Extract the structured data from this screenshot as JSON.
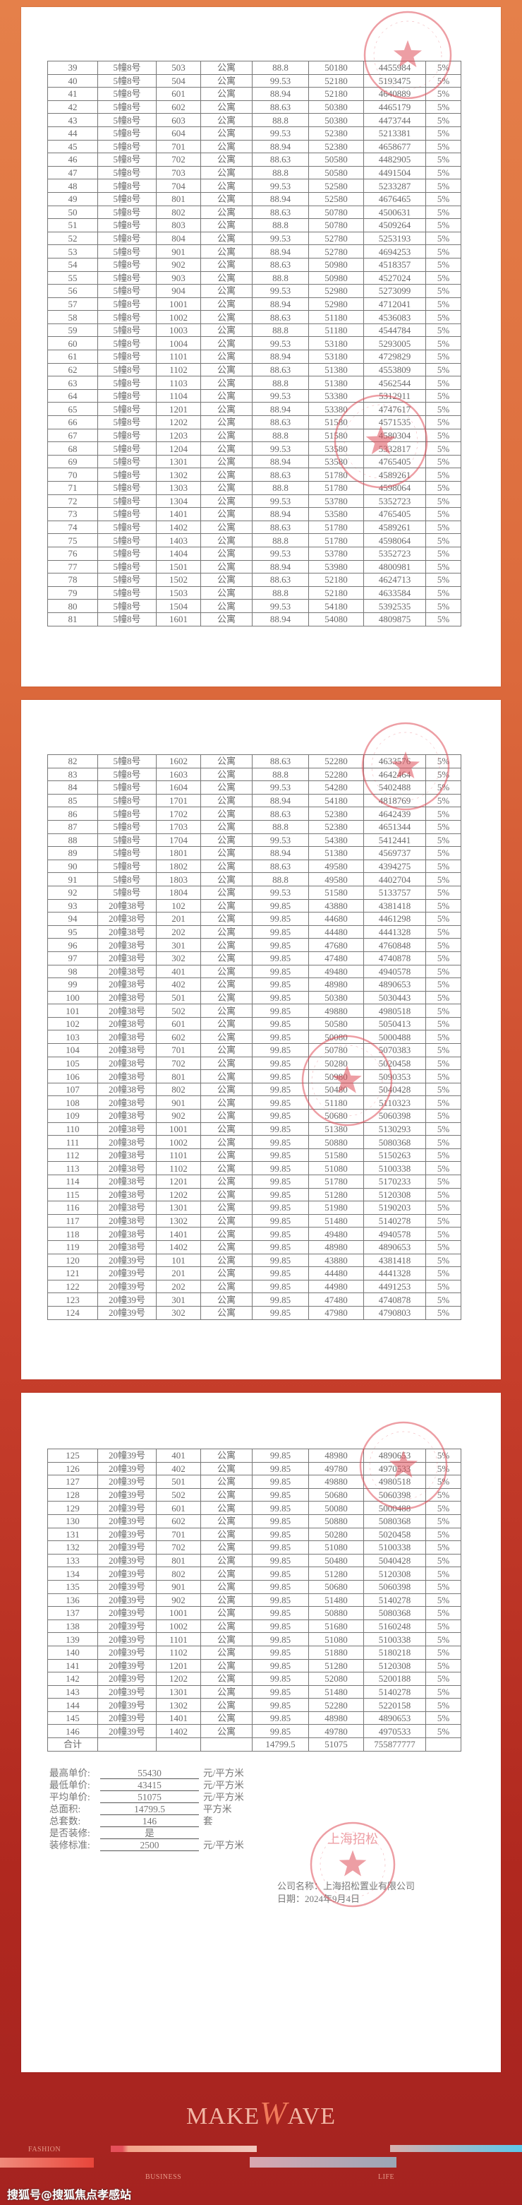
{
  "pages": [
    {
      "rows": [
        [
          "39",
          "5幢8号",
          "503",
          "公寓",
          "88.8",
          "50180",
          "4455984",
          "5%"
        ],
        [
          "40",
          "5幢8号",
          "504",
          "公寓",
          "99.53",
          "52180",
          "5193475",
          "5%"
        ],
        [
          "41",
          "5幢8号",
          "601",
          "公寓",
          "88.94",
          "52180",
          "4640889",
          "5%"
        ],
        [
          "42",
          "5幢8号",
          "602",
          "公寓",
          "88.63",
          "50380",
          "4465179",
          "5%"
        ],
        [
          "43",
          "5幢8号",
          "603",
          "公寓",
          "88.8",
          "50380",
          "4473744",
          "5%"
        ],
        [
          "44",
          "5幢8号",
          "604",
          "公寓",
          "99.53",
          "52380",
          "5213381",
          "5%"
        ],
        [
          "45",
          "5幢8号",
          "701",
          "公寓",
          "88.94",
          "52380",
          "4658677",
          "5%"
        ],
        [
          "46",
          "5幢8号",
          "702",
          "公寓",
          "88.63",
          "50580",
          "4482905",
          "5%"
        ],
        [
          "47",
          "5幢8号",
          "703",
          "公寓",
          "88.8",
          "50580",
          "4491504",
          "5%"
        ],
        [
          "48",
          "5幢8号",
          "704",
          "公寓",
          "99.53",
          "52580",
          "5233287",
          "5%"
        ],
        [
          "49",
          "5幢8号",
          "801",
          "公寓",
          "88.94",
          "52580",
          "4676465",
          "5%"
        ],
        [
          "50",
          "5幢8号",
          "802",
          "公寓",
          "88.63",
          "50780",
          "4500631",
          "5%"
        ],
        [
          "51",
          "5幢8号",
          "803",
          "公寓",
          "88.8",
          "50780",
          "4509264",
          "5%"
        ],
        [
          "52",
          "5幢8号",
          "804",
          "公寓",
          "99.53",
          "52780",
          "5253193",
          "5%"
        ],
        [
          "53",
          "5幢8号",
          "901",
          "公寓",
          "88.94",
          "52780",
          "4694253",
          "5%"
        ],
        [
          "54",
          "5幢8号",
          "902",
          "公寓",
          "88.63",
          "50980",
          "4518357",
          "5%"
        ],
        [
          "55",
          "5幢8号",
          "903",
          "公寓",
          "88.8",
          "50980",
          "4527024",
          "5%"
        ],
        [
          "56",
          "5幢8号",
          "904",
          "公寓",
          "99.53",
          "52980",
          "5273099",
          "5%"
        ],
        [
          "57",
          "5幢8号",
          "1001",
          "公寓",
          "88.94",
          "52980",
          "4712041",
          "5%"
        ],
        [
          "58",
          "5幢8号",
          "1002",
          "公寓",
          "88.63",
          "51180",
          "4536083",
          "5%"
        ],
        [
          "59",
          "5幢8号",
          "1003",
          "公寓",
          "88.8",
          "51180",
          "4544784",
          "5%"
        ],
        [
          "60",
          "5幢8号",
          "1004",
          "公寓",
          "99.53",
          "53180",
          "5293005",
          "5%"
        ],
        [
          "61",
          "5幢8号",
          "1101",
          "公寓",
          "88.94",
          "53180",
          "4729829",
          "5%"
        ],
        [
          "62",
          "5幢8号",
          "1102",
          "公寓",
          "88.63",
          "51380",
          "4553809",
          "5%"
        ],
        [
          "63",
          "5幢8号",
          "1103",
          "公寓",
          "88.8",
          "51380",
          "4562544",
          "5%"
        ],
        [
          "64",
          "5幢8号",
          "1104",
          "公寓",
          "99.53",
          "53380",
          "5312911",
          "5%"
        ],
        [
          "65",
          "5幢8号",
          "1201",
          "公寓",
          "88.94",
          "53380",
          "4747617",
          "5%"
        ],
        [
          "66",
          "5幢8号",
          "1202",
          "公寓",
          "88.63",
          "51580",
          "4571535",
          "5%"
        ],
        [
          "67",
          "5幢8号",
          "1203",
          "公寓",
          "88.8",
          "51580",
          "4580304",
          "5%"
        ],
        [
          "68",
          "5幢8号",
          "1204",
          "公寓",
          "99.53",
          "53580",
          "5332817",
          "5%"
        ],
        [
          "69",
          "5幢8号",
          "1301",
          "公寓",
          "88.94",
          "53580",
          "4765405",
          "5%"
        ],
        [
          "70",
          "5幢8号",
          "1302",
          "公寓",
          "88.63",
          "51780",
          "4589261",
          "5%"
        ],
        [
          "71",
          "5幢8号",
          "1303",
          "公寓",
          "88.8",
          "51780",
          "4598064",
          "5%"
        ],
        [
          "72",
          "5幢8号",
          "1304",
          "公寓",
          "99.53",
          "53780",
          "5352723",
          "5%"
        ],
        [
          "73",
          "5幢8号",
          "1401",
          "公寓",
          "88.94",
          "53580",
          "4765405",
          "5%"
        ],
        [
          "74",
          "5幢8号",
          "1402",
          "公寓",
          "88.63",
          "51780",
          "4589261",
          "5%"
        ],
        [
          "75",
          "5幢8号",
          "1403",
          "公寓",
          "88.8",
          "51780",
          "4598064",
          "5%"
        ],
        [
          "76",
          "5幢8号",
          "1404",
          "公寓",
          "99.53",
          "53780",
          "5352723",
          "5%"
        ],
        [
          "77",
          "5幢8号",
          "1501",
          "公寓",
          "88.94",
          "53980",
          "4800981",
          "5%"
        ],
        [
          "78",
          "5幢8号",
          "1502",
          "公寓",
          "88.63",
          "52180",
          "4624713",
          "5%"
        ],
        [
          "79",
          "5幢8号",
          "1503",
          "公寓",
          "88.8",
          "52180",
          "4633584",
          "5%"
        ],
        [
          "80",
          "5幢8号",
          "1504",
          "公寓",
          "99.53",
          "54180",
          "5392535",
          "5%"
        ],
        [
          "81",
          "5幢8号",
          "1601",
          "公寓",
          "88.94",
          "54080",
          "4809875",
          "5%"
        ]
      ]
    },
    {
      "rows": [
        [
          "82",
          "5幢8号",
          "1602",
          "公寓",
          "88.63",
          "52280",
          "4633576",
          "5%"
        ],
        [
          "83",
          "5幢8号",
          "1603",
          "公寓",
          "88.8",
          "52280",
          "4642464",
          "5%"
        ],
        [
          "84",
          "5幢8号",
          "1604",
          "公寓",
          "99.53",
          "54280",
          "5402488",
          "5%"
        ],
        [
          "85",
          "5幢8号",
          "1701",
          "公寓",
          "88.94",
          "54180",
          "4818769",
          "5%"
        ],
        [
          "86",
          "5幢8号",
          "1702",
          "公寓",
          "88.63",
          "52380",
          "4642439",
          "5%"
        ],
        [
          "87",
          "5幢8号",
          "1703",
          "公寓",
          "88.8",
          "52380",
          "4651344",
          "5%"
        ],
        [
          "88",
          "5幢8号",
          "1704",
          "公寓",
          "99.53",
          "54380",
          "5412441",
          "5%"
        ],
        [
          "89",
          "5幢8号",
          "1801",
          "公寓",
          "88.94",
          "51380",
          "4569737",
          "5%"
        ],
        [
          "90",
          "5幢8号",
          "1802",
          "公寓",
          "88.63",
          "49580",
          "4394275",
          "5%"
        ],
        [
          "91",
          "5幢8号",
          "1803",
          "公寓",
          "88.8",
          "49580",
          "4402704",
          "5%"
        ],
        [
          "92",
          "5幢8号",
          "1804",
          "公寓",
          "99.53",
          "51580",
          "5133757",
          "5%"
        ],
        [
          "93",
          "20幢38号",
          "102",
          "公寓",
          "99.85",
          "43880",
          "4381418",
          "5%"
        ],
        [
          "94",
          "20幢38号",
          "201",
          "公寓",
          "99.85",
          "44680",
          "4461298",
          "5%"
        ],
        [
          "95",
          "20幢38号",
          "202",
          "公寓",
          "99.85",
          "44480",
          "4441328",
          "5%"
        ],
        [
          "96",
          "20幢38号",
          "301",
          "公寓",
          "99.85",
          "47680",
          "4760848",
          "5%"
        ],
        [
          "97",
          "20幢38号",
          "302",
          "公寓",
          "99.85",
          "47480",
          "4740878",
          "5%"
        ],
        [
          "98",
          "20幢38号",
          "401",
          "公寓",
          "99.85",
          "49480",
          "4940578",
          "5%"
        ],
        [
          "99",
          "20幢38号",
          "402",
          "公寓",
          "99.85",
          "48980",
          "4890653",
          "5%"
        ],
        [
          "100",
          "20幢38号",
          "501",
          "公寓",
          "99.85",
          "50380",
          "5030443",
          "5%"
        ],
        [
          "101",
          "20幢38号",
          "502",
          "公寓",
          "99.85",
          "49880",
          "4980518",
          "5%"
        ],
        [
          "102",
          "20幢38号",
          "601",
          "公寓",
          "99.85",
          "50580",
          "5050413",
          "5%"
        ],
        [
          "103",
          "20幢38号",
          "602",
          "公寓",
          "99.85",
          "50080",
          "5000488",
          "5%"
        ],
        [
          "104",
          "20幢38号",
          "701",
          "公寓",
          "99.85",
          "50780",
          "5070383",
          "5%"
        ],
        [
          "105",
          "20幢38号",
          "702",
          "公寓",
          "99.85",
          "50280",
          "5020458",
          "5%"
        ],
        [
          "106",
          "20幢38号",
          "801",
          "公寓",
          "99.85",
          "50980",
          "5090353",
          "5%"
        ],
        [
          "107",
          "20幢38号",
          "802",
          "公寓",
          "99.85",
          "50480",
          "5040428",
          "5%"
        ],
        [
          "108",
          "20幢38号",
          "901",
          "公寓",
          "99.85",
          "51180",
          "5110323",
          "5%"
        ],
        [
          "109",
          "20幢38号",
          "902",
          "公寓",
          "99.85",
          "50680",
          "5060398",
          "5%"
        ],
        [
          "110",
          "20幢38号",
          "1001",
          "公寓",
          "99.85",
          "51380",
          "5130293",
          "5%"
        ],
        [
          "111",
          "20幢38号",
          "1002",
          "公寓",
          "99.85",
          "50880",
          "5080368",
          "5%"
        ],
        [
          "112",
          "20幢38号",
          "1101",
          "公寓",
          "99.85",
          "51580",
          "5150263",
          "5%"
        ],
        [
          "113",
          "20幢38号",
          "1102",
          "公寓",
          "99.85",
          "51080",
          "5100338",
          "5%"
        ],
        [
          "114",
          "20幢38号",
          "1201",
          "公寓",
          "99.85",
          "51780",
          "5170233",
          "5%"
        ],
        [
          "115",
          "20幢38号",
          "1202",
          "公寓",
          "99.85",
          "51280",
          "5120308",
          "5%"
        ],
        [
          "116",
          "20幢38号",
          "1301",
          "公寓",
          "99.85",
          "51980",
          "5190203",
          "5%"
        ],
        [
          "117",
          "20幢38号",
          "1302",
          "公寓",
          "99.85",
          "51480",
          "5140278",
          "5%"
        ],
        [
          "118",
          "20幢38号",
          "1401",
          "公寓",
          "99.85",
          "49480",
          "4940578",
          "5%"
        ],
        [
          "119",
          "20幢38号",
          "1402",
          "公寓",
          "99.85",
          "48980",
          "4890653",
          "5%"
        ],
        [
          "120",
          "20幢39号",
          "101",
          "公寓",
          "99.85",
          "43880",
          "4381418",
          "5%"
        ],
        [
          "121",
          "20幢39号",
          "201",
          "公寓",
          "99.85",
          "44480",
          "4441328",
          "5%"
        ],
        [
          "122",
          "20幢39号",
          "202",
          "公寓",
          "99.85",
          "44980",
          "4491253",
          "5%"
        ],
        [
          "123",
          "20幢39号",
          "301",
          "公寓",
          "99.85",
          "47480",
          "4740878",
          "5%"
        ],
        [
          "124",
          "20幢39号",
          "302",
          "公寓",
          "99.85",
          "47980",
          "4790803",
          "5%"
        ]
      ]
    },
    {
      "rows": [
        [
          "125",
          "20幢39号",
          "401",
          "公寓",
          "99.85",
          "48980",
          "4890653",
          "5%"
        ],
        [
          "126",
          "20幢39号",
          "402",
          "公寓",
          "99.85",
          "49780",
          "4970533",
          "5%"
        ],
        [
          "127",
          "20幢39号",
          "501",
          "公寓",
          "99.85",
          "49880",
          "4980518",
          "5%"
        ],
        [
          "128",
          "20幢39号",
          "502",
          "公寓",
          "99.85",
          "50680",
          "5060398",
          "5%"
        ],
        [
          "129",
          "20幢39号",
          "601",
          "公寓",
          "99.85",
          "50080",
          "5000488",
          "5%"
        ],
        [
          "130",
          "20幢39号",
          "602",
          "公寓",
          "99.85",
          "50880",
          "5080368",
          "5%"
        ],
        [
          "131",
          "20幢39号",
          "701",
          "公寓",
          "99.85",
          "50280",
          "5020458",
          "5%"
        ],
        [
          "132",
          "20幢39号",
          "702",
          "公寓",
          "99.85",
          "51080",
          "5100338",
          "5%"
        ],
        [
          "133",
          "20幢39号",
          "801",
          "公寓",
          "99.85",
          "50480",
          "5040428",
          "5%"
        ],
        [
          "134",
          "20幢39号",
          "802",
          "公寓",
          "99.85",
          "51280",
          "5120308",
          "5%"
        ],
        [
          "135",
          "20幢39号",
          "901",
          "公寓",
          "99.85",
          "50680",
          "5060398",
          "5%"
        ],
        [
          "136",
          "20幢39号",
          "902",
          "公寓",
          "99.85",
          "51480",
          "5140278",
          "5%"
        ],
        [
          "137",
          "20幢39号",
          "1001",
          "公寓",
          "99.85",
          "50880",
          "5080368",
          "5%"
        ],
        [
          "138",
          "20幢39号",
          "1002",
          "公寓",
          "99.85",
          "51680",
          "5160248",
          "5%"
        ],
        [
          "139",
          "20幢39号",
          "1101",
          "公寓",
          "99.85",
          "51080",
          "5100338",
          "5%"
        ],
        [
          "140",
          "20幢39号",
          "1102",
          "公寓",
          "99.85",
          "51880",
          "5180218",
          "5%"
        ],
        [
          "141",
          "20幢39号",
          "1201",
          "公寓",
          "99.85",
          "51280",
          "5120308",
          "5%"
        ],
        [
          "142",
          "20幢39号",
          "1202",
          "公寓",
          "99.85",
          "52080",
          "5200188",
          "5%"
        ],
        [
          "143",
          "20幢39号",
          "1301",
          "公寓",
          "99.85",
          "51480",
          "5140278",
          "5%"
        ],
        [
          "144",
          "20幢39号",
          "1302",
          "公寓",
          "99.85",
          "52280",
          "5220158",
          "5%"
        ],
        [
          "145",
          "20幢39号",
          "1401",
          "公寓",
          "99.85",
          "48980",
          "4890653",
          "5%"
        ],
        [
          "146",
          "20幢39号",
          "1402",
          "公寓",
          "99.85",
          "49780",
          "4970533",
          "5%"
        ],
        [
          "合计",
          "",
          "",
          "",
          "14799.5",
          "51075",
          "755877777",
          ""
        ]
      ]
    }
  ],
  "summary": [
    {
      "label": "最高单价:",
      "value": "55430",
      "unit": "元/平方米"
    },
    {
      "label": "最低单价:",
      "value": "43415",
      "unit": "元/平方米"
    },
    {
      "label": "平均单价:",
      "value": "51075",
      "unit": "元/平方米"
    },
    {
      "label": "总面积:",
      "value": "14799.5",
      "unit": "平方米"
    },
    {
      "label": "总套数:",
      "value": "146",
      "unit": "套"
    },
    {
      "label": "是否装修:",
      "value": "是",
      "unit": ""
    },
    {
      "label": "装修标准:",
      "value": "2500",
      "unit": "元/平方米"
    }
  ],
  "company": {
    "name_line": "公司名称：上海招松置业有限公司",
    "date_line": "日期：2024年9月4日"
  },
  "stamp_text": "上海招松",
  "footer": {
    "logo_left": "MAKE",
    "logo_w": "W",
    "logo_right": "AVE",
    "tag_fashion": "FASHION",
    "tag_business": "BUSINESS",
    "tag_life": "LIFE"
  },
  "watermark": "搜狐号@搜狐焦点孝感站",
  "colors": {
    "stamp": "#e0505a",
    "table_text": "#6a6a6a",
    "bg_top": "#e5804a",
    "bg_bottom": "#a52320"
  }
}
